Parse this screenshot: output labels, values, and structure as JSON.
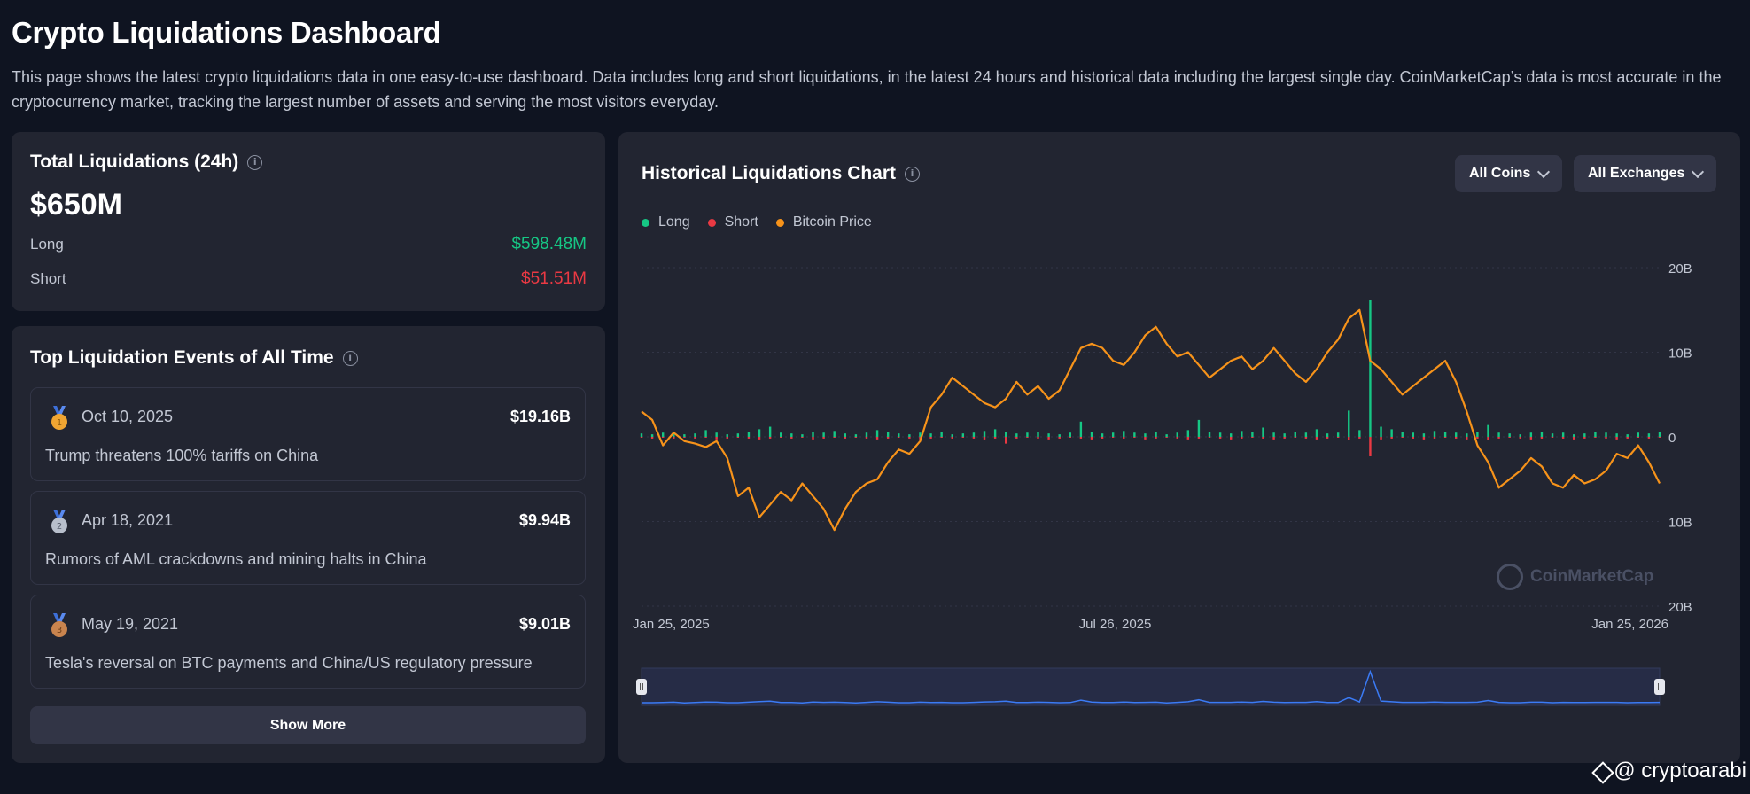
{
  "page": {
    "title": "Crypto Liquidations Dashboard",
    "description": "This page shows the latest crypto liquidations data in one easy-to-use dashboard. Data includes long and short liquidations, in the latest 24 hours and historical data including the largest single day. CoinMarketCap’s data is most accurate in the cryptocurrency market, tracking the largest number of assets and serving the most visitors everyday."
  },
  "total": {
    "heading": "Total Liquidations (24h)",
    "value": "$650M",
    "long_label": "Long",
    "long_value": "$598.48M",
    "short_label": "Short",
    "short_value": "$51.51M"
  },
  "events": {
    "heading": "Top Liquidation Events of All Time",
    "items": [
      {
        "rank": "1",
        "date": "Oct 10, 2025",
        "amount": "$19.16B",
        "desc": "Trump threatens 100% tariffs on China",
        "medal_color": "#f0a532"
      },
      {
        "rank": "2",
        "date": "Apr 18, 2021",
        "amount": "$9.94B",
        "desc": "Rumors of AML crackdowns and mining halts in China",
        "medal_color": "#b8bfcc"
      },
      {
        "rank": "3",
        "date": "May 19, 2021",
        "amount": "$9.01B",
        "desc": "Tesla's reversal on BTC payments and China/US regulatory pressure",
        "medal_color": "#c9844e"
      }
    ],
    "show_more": "Show More"
  },
  "chart": {
    "heading": "Historical Liquidations Chart",
    "coins_dropdown": "All Coins",
    "exchanges_dropdown": "All Exchanges",
    "legend": [
      {
        "label": "Long",
        "color": "#16c784"
      },
      {
        "label": "Short",
        "color": "#ea3943"
      },
      {
        "label": "Bitcoin Price",
        "color": "#f7931a"
      }
    ],
    "watermark": "CoinMarketCap"
  },
  "chart_data": {
    "type": "bar",
    "y_ticks": [
      "20B",
      "10B",
      "0",
      "10B",
      "20B"
    ],
    "ylim": [
      -20,
      20
    ],
    "x_ticks": [
      "Jan 25, 2025",
      "Jul 26, 2025",
      "Jan 25, 2026"
    ],
    "series": [
      {
        "name": "Long",
        "type": "bar",
        "values": [
          0.4,
          0.3,
          0.5,
          0.6,
          0.3,
          0.4,
          0.8,
          0.5,
          0.3,
          0.4,
          0.6,
          0.9,
          1.2,
          0.5,
          0.4,
          0.3,
          0.6,
          0.5,
          0.7,
          0.4,
          0.3,
          0.5,
          0.8,
          0.6,
          0.4,
          0.3,
          0.5,
          0.4,
          0.6,
          0.3,
          0.4,
          0.5,
          0.7,
          0.9,
          0.6,
          0.4,
          0.5,
          0.6,
          0.4,
          0.3,
          0.5,
          1.8,
          0.6,
          0.4,
          0.5,
          0.7,
          0.5,
          0.4,
          0.6,
          0.3,
          0.5,
          0.8,
          2.0,
          0.6,
          0.5,
          0.4,
          0.7,
          0.6,
          1.1,
          0.5,
          0.4,
          0.6,
          0.5,
          0.9,
          0.4,
          0.5,
          3.1,
          0.8,
          16.2,
          1.2,
          0.9,
          0.6,
          0.5,
          0.4,
          0.7,
          0.6,
          0.5,
          0.4,
          0.6,
          1.4,
          0.5,
          0.4,
          0.3,
          0.5,
          0.6,
          0.4,
          0.5,
          0.3,
          0.4,
          0.6,
          0.5,
          0.4,
          0.3,
          0.5,
          0.4,
          0.6
        ]
      },
      {
        "name": "Short",
        "type": "bar",
        "values": [
          0.1,
          0.2,
          0.1,
          0.2,
          0.1,
          0.2,
          0.1,
          0.3,
          0.2,
          0.1,
          0.2,
          0.3,
          0.2,
          0.1,
          0.2,
          0.1,
          0.3,
          0.2,
          0.1,
          0.2,
          0.1,
          0.2,
          0.3,
          0.2,
          0.1,
          0.2,
          0.3,
          0.2,
          0.1,
          0.2,
          0.1,
          0.2,
          0.3,
          0.2,
          0.8,
          0.2,
          0.1,
          0.2,
          0.3,
          0.2,
          0.1,
          0.2,
          0.3,
          0.2,
          0.1,
          0.2,
          0.1,
          0.3,
          0.2,
          0.1,
          0.2,
          0.3,
          0.2,
          0.1,
          0.2,
          0.3,
          0.2,
          0.1,
          0.2,
          0.3,
          0.2,
          0.1,
          0.2,
          0.3,
          0.2,
          0.1,
          0.4,
          0.2,
          2.3,
          0.3,
          0.2,
          0.1,
          0.2,
          0.3,
          0.2,
          0.1,
          0.2,
          0.3,
          0.2,
          0.4,
          0.2,
          0.1,
          0.2,
          0.3,
          0.2,
          0.1,
          0.2,
          0.3,
          0.2,
          0.1,
          0.2,
          0.3,
          0.2,
          0.1,
          0.2,
          0.1
        ]
      },
      {
        "name": "Bitcoin Price",
        "type": "line",
        "values": [
          3.0,
          2.0,
          -1.0,
          0.5,
          -0.5,
          -0.8,
          -1.2,
          -0.5,
          -2.5,
          -7.0,
          -6.0,
          -9.5,
          -8.0,
          -6.5,
          -7.5,
          -5.5,
          -7.0,
          -8.5,
          -11.0,
          -8.5,
          -6.5,
          -5.5,
          -5.0,
          -3.0,
          -1.5,
          -2.0,
          -0.5,
          3.5,
          5.0,
          7.0,
          6.0,
          5.0,
          4.0,
          3.5,
          4.5,
          6.5,
          5.0,
          6.0,
          4.5,
          5.5,
          8.0,
          10.5,
          11.0,
          10.5,
          9.0,
          8.5,
          10.0,
          12.0,
          13.0,
          11.0,
          9.5,
          10.0,
          8.5,
          7.0,
          8.0,
          9.0,
          9.5,
          8.0,
          9.0,
          10.5,
          9.0,
          7.5,
          6.5,
          8.0,
          10.0,
          11.5,
          14.0,
          15.0,
          9.0,
          8.0,
          6.5,
          5.0,
          6.0,
          7.0,
          8.0,
          9.0,
          6.5,
          3.0,
          -1.0,
          -3.0,
          -6.0,
          -5.0,
          -4.0,
          -2.5,
          -3.5,
          -5.5,
          -6.0,
          -4.5,
          -5.5,
          -5.0,
          -4.0,
          -2.0,
          -2.5,
          -1.0,
          -3.0,
          -5.5
        ]
      }
    ],
    "grid": true,
    "legend_position": "top-left"
  },
  "footer": {
    "credit": "@ cryptoarabi"
  }
}
